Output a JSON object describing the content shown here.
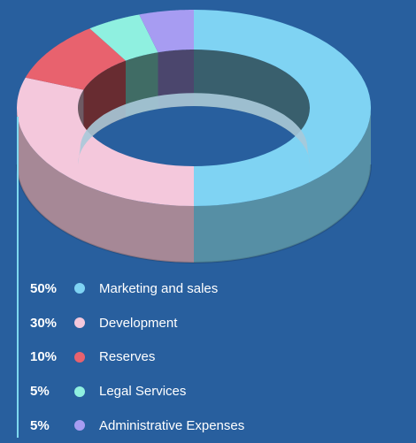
{
  "chart_data": {
    "type": "pie",
    "variant": "3d-donut",
    "title": "",
    "slices": [
      {
        "label": "Marketing and sales",
        "value": 50,
        "percent_label": "50%",
        "color": "#7fd3f3"
      },
      {
        "label": "Development",
        "value": 30,
        "percent_label": "30%",
        "color": "#f4c8dc"
      },
      {
        "label": "Reserves",
        "value": 10,
        "percent_label": "10%",
        "color": "#e8626e"
      },
      {
        "label": "Legal Services",
        "value": 5,
        "percent_label": "5%",
        "color": "#8ff0e0"
      },
      {
        "label": "Administrative Expenses",
        "value": 5,
        "percent_label": "5%",
        "color": "#a79cf2"
      }
    ],
    "legend_position": "bottom-left"
  },
  "colors": {
    "background": "#285f9e",
    "accent_line": "#7fd8ee",
    "inner_wall": "#a9c9d9"
  }
}
